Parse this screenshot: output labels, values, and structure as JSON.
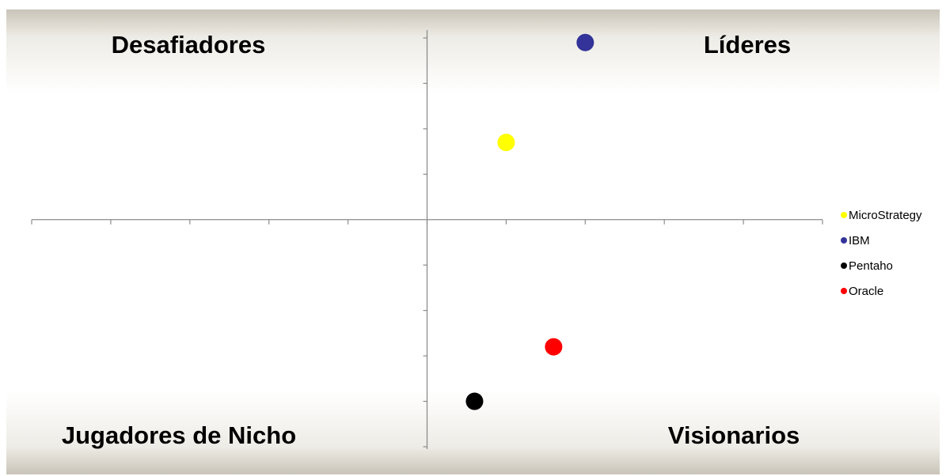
{
  "quadrants": {
    "top_left": "Desafiadores",
    "top_right": "Líderes",
    "bottom_left": "Jugadores de Nicho",
    "bottom_right": "Visionarios"
  },
  "colors": {
    "MicroStrategy": "#ffff00",
    "IBM": "#333399",
    "Pentaho": "#000000",
    "Oracle": "#ff0000"
  },
  "chart_data": {
    "type": "scatter",
    "title": "",
    "xlabel": "",
    "ylabel": "",
    "xlim": [
      -5,
      5
    ],
    "ylim": [
      -5,
      4
    ],
    "grid": false,
    "legend_position": "right",
    "series": [
      {
        "name": "MicroStrategy",
        "color": "#ffff00",
        "x": [
          1.0
        ],
        "y": [
          1.7
        ]
      },
      {
        "name": "IBM",
        "color": "#333399",
        "x": [
          2.0
        ],
        "y": [
          3.9
        ]
      },
      {
        "name": "Pentaho",
        "color": "#000000",
        "x": [
          0.6
        ],
        "y": [
          -4.0
        ]
      },
      {
        "name": "Oracle",
        "color": "#ff0000",
        "x": [
          1.6
        ],
        "y": [
          -2.8
        ]
      }
    ]
  }
}
